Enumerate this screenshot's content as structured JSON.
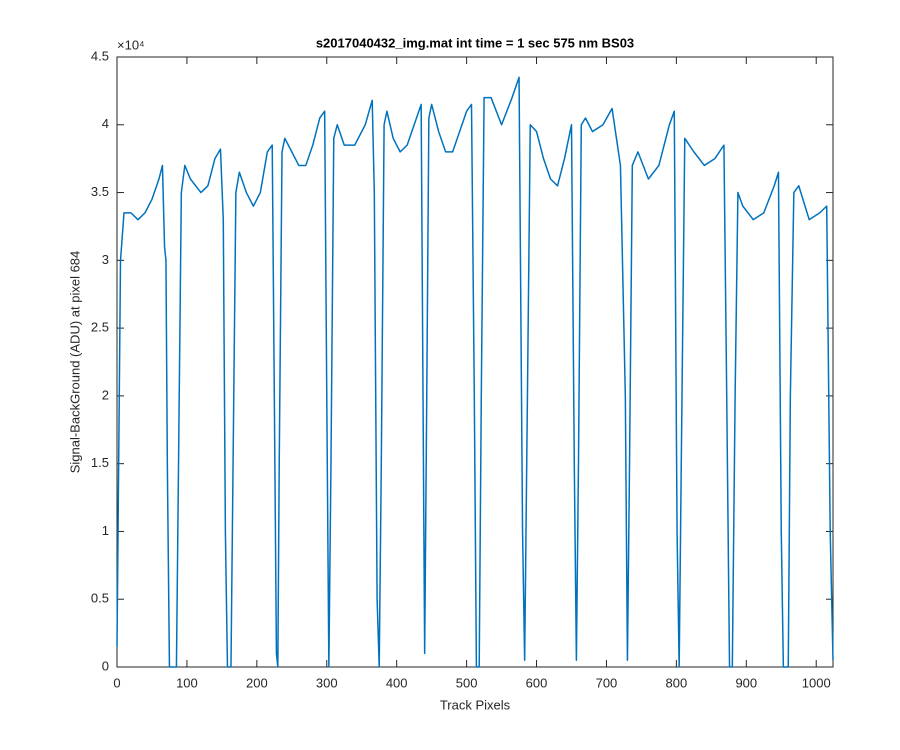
{
  "chart_data": {
    "type": "line",
    "title": "s2017040432_img.mat int time = 1 sec  575 nm BS03",
    "xlabel": "Track Pixels",
    "ylabel": "Signal-BackGround (ADU) at pixel 684",
    "y_multiplier": "×10⁴",
    "color": "#0072bd",
    "xlim": [
      0,
      1024
    ],
    "ylim": [
      0,
      4.5
    ],
    "xticks": [
      0,
      100,
      200,
      300,
      400,
      500,
      600,
      700,
      800,
      900,
      1000
    ],
    "yticks": [
      0,
      0.5,
      1,
      1.5,
      2,
      2.5,
      3,
      3.5,
      4,
      4.5
    ],
    "x": [
      0,
      5,
      10,
      20,
      30,
      40,
      50,
      60,
      65,
      68,
      70,
      72,
      75,
      85,
      88,
      92,
      97,
      105,
      120,
      130,
      140,
      148,
      152,
      155,
      158,
      163,
      166,
      170,
      175,
      185,
      195,
      205,
      215,
      222,
      225,
      228,
      230,
      232,
      236,
      240,
      250,
      260,
      270,
      280,
      290,
      297,
      300,
      303,
      306,
      310,
      315,
      325,
      340,
      355,
      365,
      368,
      372,
      375,
      378,
      382,
      386,
      395,
      405,
      415,
      425,
      435,
      440,
      443,
      446,
      450,
      460,
      470,
      480,
      490,
      500,
      507,
      511,
      514,
      518,
      521,
      525,
      535,
      550,
      565,
      575,
      580,
      583,
      587,
      591,
      600,
      610,
      620,
      630,
      640,
      650,
      654,
      657,
      660,
      664,
      670,
      680,
      695,
      708,
      720,
      727,
      730,
      733,
      737,
      745,
      760,
      775,
      790,
      797,
      801,
      804,
      807,
      812,
      825,
      840,
      855,
      868,
      872,
      876,
      880,
      884,
      888,
      895,
      910,
      925,
      940,
      946,
      950,
      953,
      960,
      963,
      968,
      975,
      990,
      1005,
      1015,
      1020,
      1024
    ],
    "values": [
      0.15,
      3.0,
      3.35,
      3.35,
      3.3,
      3.35,
      3.45,
      3.6,
      3.7,
      3.1,
      3.0,
      1.5,
      0.0,
      0.0,
      1.5,
      3.5,
      3.7,
      3.6,
      3.5,
      3.55,
      3.75,
      3.82,
      3.3,
      1.0,
      0.0,
      0.0,
      1.5,
      3.5,
      3.65,
      3.5,
      3.4,
      3.5,
      3.8,
      3.85,
      2.0,
      0.1,
      0.0,
      1.5,
      3.8,
      3.9,
      3.8,
      3.7,
      3.7,
      3.85,
      4.05,
      4.1,
      2.0,
      0.0,
      1.5,
      3.9,
      4.0,
      3.85,
      3.85,
      4.0,
      4.18,
      3.5,
      0.5,
      0.0,
      1.5,
      4.0,
      4.1,
      3.9,
      3.8,
      3.85,
      4.0,
      4.15,
      0.1,
      2.0,
      4.05,
      4.15,
      3.95,
      3.8,
      3.8,
      3.95,
      4.1,
      4.15,
      2.0,
      0.0,
      0.0,
      2.0,
      4.2,
      4.2,
      4.0,
      4.2,
      4.35,
      1.0,
      0.05,
      2.0,
      4.0,
      3.95,
      3.75,
      3.6,
      3.55,
      3.75,
      4.0,
      1.5,
      0.05,
      1.5,
      4.0,
      4.05,
      3.95,
      4.0,
      4.12,
      3.7,
      2.0,
      0.05,
      1.5,
      3.7,
      3.8,
      3.6,
      3.7,
      4.0,
      4.1,
      1.0,
      0.0,
      1.5,
      3.9,
      3.8,
      3.7,
      3.75,
      3.85,
      2.0,
      0.0,
      0.0,
      2.0,
      3.5,
      3.4,
      3.3,
      3.35,
      3.55,
      3.65,
      1.0,
      0.0,
      0.0,
      2.0,
      3.5,
      3.55,
      3.3,
      3.35,
      3.4,
      1.0,
      0.05
    ]
  }
}
